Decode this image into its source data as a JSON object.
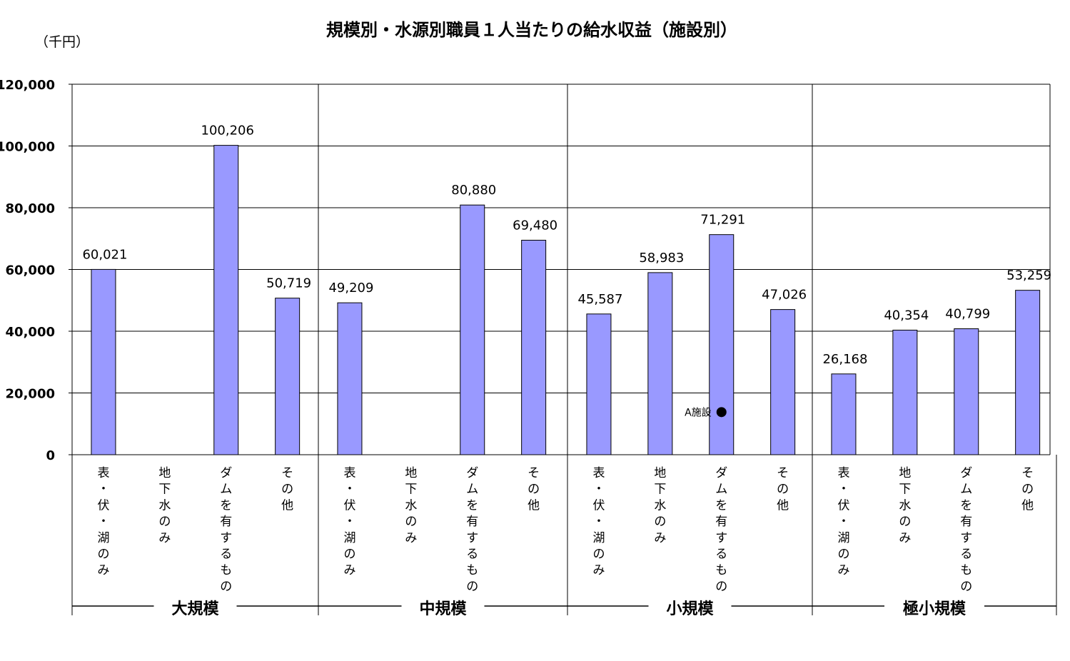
{
  "chart_data": {
    "type": "bar",
    "title": "規模別・水源別職員１人当たりの給水収益（施設別）",
    "unit_label": "（千円）",
    "ylim": [
      0,
      120000
    ],
    "y_ticks": [
      0,
      20000,
      40000,
      60000,
      80000,
      100000,
      120000
    ],
    "y_tick_labels": [
      "0",
      "20,000",
      "40,000",
      "60,000",
      "80,000",
      "100,000",
      "120,000"
    ],
    "grid": true,
    "legend": "none",
    "groups": [
      {
        "name": "大規模",
        "categories": [
          {
            "name": "表・伏・湖のみ",
            "value": 60021,
            "label": "60,021"
          },
          {
            "name": "地下水のみ",
            "value": null,
            "label": ""
          },
          {
            "name": "ダムを有するもの",
            "value": 100206,
            "label": "100,206"
          },
          {
            "name": "その他",
            "value": 50719,
            "label": "50,719"
          }
        ]
      },
      {
        "name": "中規模",
        "categories": [
          {
            "name": "表・伏・湖のみ",
            "value": 49209,
            "label": "49,209"
          },
          {
            "name": "地下水のみ",
            "value": null,
            "label": ""
          },
          {
            "name": "ダムを有するもの",
            "value": 80880,
            "label": "80,880"
          },
          {
            "name": "その他",
            "value": 69480,
            "label": "69,480"
          }
        ]
      },
      {
        "name": "小規模",
        "categories": [
          {
            "name": "表・伏・湖のみ",
            "value": 45587,
            "label": "45,587"
          },
          {
            "name": "地下水のみ",
            "value": 58983,
            "label": "58,983"
          },
          {
            "name": "ダムを有するもの",
            "value": 71291,
            "label": "71,291"
          },
          {
            "name": "その他",
            "value": 47026,
            "label": "47,026"
          }
        ]
      },
      {
        "name": "極小規模",
        "categories": [
          {
            "name": "表・伏・湖のみ",
            "value": 26168,
            "label": "26,168"
          },
          {
            "name": "地下水のみ",
            "value": 40354,
            "label": "40,354"
          },
          {
            "name": "ダムを有するもの",
            "value": 40799,
            "label": "40,799"
          },
          {
            "name": "その他",
            "value": 53259,
            "label": "53,259"
          }
        ]
      }
    ],
    "marker": {
      "label": "A施設",
      "group_index": 2,
      "category_index": 2,
      "value": 13800
    },
    "bar_color": "#9999ff",
    "bar_outline_color": "#000000"
  }
}
